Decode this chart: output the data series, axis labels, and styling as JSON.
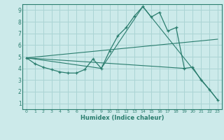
{
  "title": "",
  "xlabel": "Humidex (Indice chaleur)",
  "bg_color": "#cceaea",
  "grid_color": "#aad4d4",
  "line_color": "#2a7d6e",
  "xlim": [
    -0.5,
    23.5
  ],
  "ylim": [
    0.5,
    9.5
  ],
  "xticks": [
    0,
    1,
    2,
    3,
    4,
    5,
    6,
    7,
    8,
    9,
    10,
    11,
    12,
    13,
    14,
    15,
    16,
    17,
    18,
    19,
    20,
    21,
    22,
    23
  ],
  "yticks": [
    1,
    2,
    3,
    4,
    5,
    6,
    7,
    8,
    9
  ],
  "line1_x": [
    0,
    1,
    2,
    3,
    4,
    5,
    6,
    7,
    8,
    9,
    10,
    11,
    12,
    13,
    14,
    15,
    16,
    17,
    18,
    19,
    20,
    21,
    22,
    23
  ],
  "line1_y": [
    4.9,
    4.4,
    4.1,
    3.9,
    3.7,
    3.6,
    3.6,
    3.9,
    4.8,
    4.0,
    5.5,
    6.8,
    7.5,
    8.5,
    9.3,
    8.4,
    8.8,
    7.2,
    7.5,
    4.0,
    4.1,
    3.0,
    2.2,
    1.3
  ],
  "line2_x": [
    0,
    9,
    14,
    23
  ],
  "line2_y": [
    4.9,
    4.0,
    9.3,
    1.3
  ],
  "line3_x": [
    0,
    23
  ],
  "line3_y": [
    4.9,
    6.5
  ],
  "line4_x": [
    0,
    19
  ],
  "line4_y": [
    4.9,
    4.0
  ]
}
